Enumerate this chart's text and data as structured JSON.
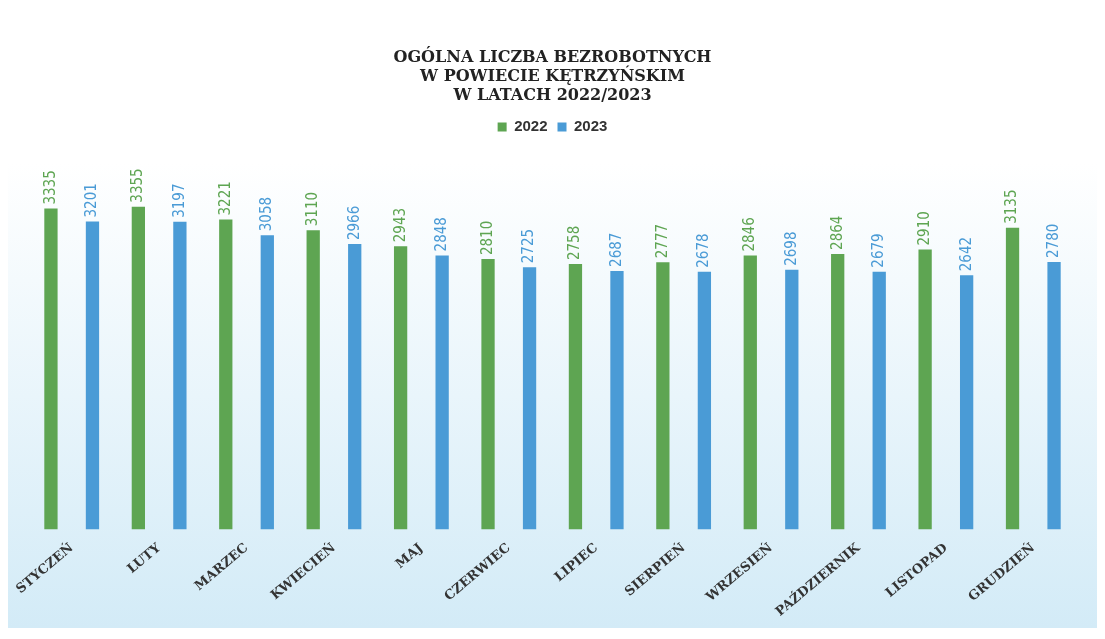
{
  "chart_data": {
    "type": "bar",
    "title": "OGÓLNA LICZBA BEZROBOTNYCH\nW POWIECIE KĘTRZYŃSKIM\nW LATACH 2022/2023",
    "categories": [
      "STYCZEŃ",
      "LUTY",
      "MARZEC",
      "KWIECIEŃ",
      "MAJ",
      "CZERWIEC",
      "LIPIEC",
      "SIERPIEŃ",
      "WRZESIEŃ",
      "PAŹDZIERNIK",
      "LISTOPAD",
      "GRUDZIEŃ"
    ],
    "series": [
      {
        "name": "2022",
        "color": "#5ea552",
        "values": [
          3335,
          3355,
          3221,
          3110,
          2943,
          2810,
          2758,
          2777,
          2846,
          2864,
          2910,
          3135
        ]
      },
      {
        "name": "2023",
        "color": "#4a9bd6",
        "values": [
          3201,
          3197,
          3058,
          2966,
          2848,
          2725,
          2687,
          2678,
          2698,
          2679,
          2642,
          2780
        ]
      }
    ],
    "data_labels": true,
    "legend": "top",
    "grid": false
  }
}
